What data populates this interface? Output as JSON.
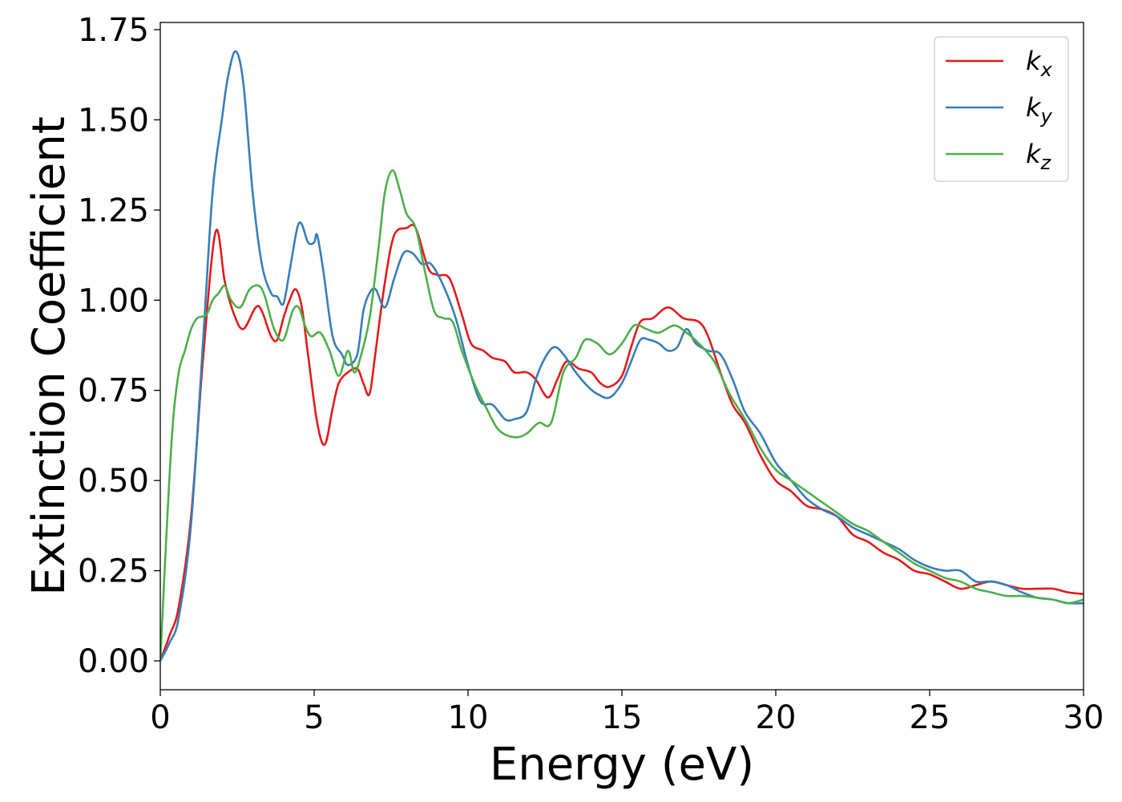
{
  "chart_data": {
    "type": "line",
    "title": "",
    "xlabel": "Energy (eV)",
    "ylabel": "Extinction Coefficient",
    "xlim": [
      0,
      30
    ],
    "ylim": [
      -0.08,
      1.77
    ],
    "xticks": [
      0,
      5,
      10,
      15,
      20,
      25,
      30
    ],
    "xtick_labels": [
      "0",
      "5",
      "10",
      "15",
      "20",
      "25",
      "30"
    ],
    "yticks": [
      0,
      0.25,
      0.5,
      0.75,
      1.0,
      1.25,
      1.5,
      1.75
    ],
    "ytick_labels": [
      "0.00",
      "0.25",
      "0.50",
      "0.75",
      "1.00",
      "1.25",
      "1.50",
      "1.75"
    ],
    "grid": false,
    "legend": "top-right",
    "series": [
      {
        "name": "k_x",
        "label_main": "k",
        "label_sub": "x",
        "color": "#e41a1c",
        "points": [
          [
            0,
            0.0
          ],
          [
            0.3,
            0.07
          ],
          [
            0.6,
            0.15
          ],
          [
            1.0,
            0.4
          ],
          [
            1.4,
            0.85
          ],
          [
            1.8,
            1.19
          ],
          [
            2.1,
            1.05
          ],
          [
            2.4,
            0.96
          ],
          [
            2.7,
            0.92
          ],
          [
            3.1,
            0.98
          ],
          [
            3.3,
            0.97
          ],
          [
            3.6,
            0.9
          ],
          [
            3.8,
            0.89
          ],
          [
            4.0,
            0.95
          ],
          [
            4.2,
            1.0
          ],
          [
            4.4,
            1.03
          ],
          [
            4.6,
            0.98
          ],
          [
            4.8,
            0.85
          ],
          [
            5.1,
            0.66
          ],
          [
            5.35,
            0.6
          ],
          [
            5.6,
            0.7
          ],
          [
            5.8,
            0.77
          ],
          [
            6.1,
            0.8
          ],
          [
            6.4,
            0.81
          ],
          [
            6.6,
            0.77
          ],
          [
            6.8,
            0.74
          ],
          [
            7.0,
            0.86
          ],
          [
            7.3,
            1.05
          ],
          [
            7.6,
            1.18
          ],
          [
            8.0,
            1.2
          ],
          [
            8.3,
            1.2
          ],
          [
            8.7,
            1.09
          ],
          [
            9.0,
            1.07
          ],
          [
            9.4,
            1.06
          ],
          [
            9.8,
            0.96
          ],
          [
            10.1,
            0.88
          ],
          [
            10.5,
            0.86
          ],
          [
            10.8,
            0.84
          ],
          [
            11.2,
            0.83
          ],
          [
            11.5,
            0.8
          ],
          [
            11.9,
            0.8
          ],
          [
            12.2,
            0.78
          ],
          [
            12.6,
            0.73
          ],
          [
            12.9,
            0.78
          ],
          [
            13.2,
            0.83
          ],
          [
            13.6,
            0.81
          ],
          [
            14.0,
            0.8
          ],
          [
            14.3,
            0.77
          ],
          [
            14.6,
            0.76
          ],
          [
            15.0,
            0.79
          ],
          [
            15.3,
            0.87
          ],
          [
            15.6,
            0.94
          ],
          [
            16.0,
            0.95
          ],
          [
            16.5,
            0.98
          ],
          [
            17.0,
            0.95
          ],
          [
            17.5,
            0.94
          ],
          [
            17.8,
            0.9
          ],
          [
            18.2,
            0.8
          ],
          [
            18.6,
            0.71
          ],
          [
            19.0,
            0.66
          ],
          [
            19.5,
            0.57
          ],
          [
            20.0,
            0.5
          ],
          [
            20.5,
            0.47
          ],
          [
            21.0,
            0.43
          ],
          [
            21.5,
            0.42
          ],
          [
            22.0,
            0.4
          ],
          [
            22.5,
            0.35
          ],
          [
            23.0,
            0.33
          ],
          [
            23.5,
            0.3
          ],
          [
            24.0,
            0.28
          ],
          [
            24.5,
            0.25
          ],
          [
            25.0,
            0.24
          ],
          [
            25.5,
            0.22
          ],
          [
            26.0,
            0.2
          ],
          [
            26.5,
            0.21
          ],
          [
            27.0,
            0.22
          ],
          [
            27.5,
            0.21
          ],
          [
            28.0,
            0.2
          ],
          [
            28.5,
            0.2
          ],
          [
            29.0,
            0.2
          ],
          [
            29.5,
            0.19
          ],
          [
            30.0,
            0.185
          ]
        ]
      },
      {
        "name": "k_y",
        "label_main": "k",
        "label_sub": "y",
        "color": "#377eb8",
        "points": [
          [
            0,
            0.0
          ],
          [
            0.3,
            0.05
          ],
          [
            0.6,
            0.12
          ],
          [
            1.0,
            0.38
          ],
          [
            1.4,
            0.9
          ],
          [
            1.7,
            1.3
          ],
          [
            2.0,
            1.5
          ],
          [
            2.2,
            1.62
          ],
          [
            2.45,
            1.69
          ],
          [
            2.7,
            1.6
          ],
          [
            3.0,
            1.3
          ],
          [
            3.3,
            1.1
          ],
          [
            3.6,
            1.02
          ],
          [
            3.8,
            1.01
          ],
          [
            4.0,
            0.99
          ],
          [
            4.2,
            1.08
          ],
          [
            4.45,
            1.2
          ],
          [
            4.6,
            1.21
          ],
          [
            4.8,
            1.16
          ],
          [
            5.0,
            1.16
          ],
          [
            5.1,
            1.18
          ],
          [
            5.3,
            1.08
          ],
          [
            5.6,
            0.9
          ],
          [
            5.9,
            0.85
          ],
          [
            6.1,
            0.82
          ],
          [
            6.4,
            0.85
          ],
          [
            6.6,
            0.97
          ],
          [
            6.8,
            1.02
          ],
          [
            7.0,
            1.03
          ],
          [
            7.3,
            0.98
          ],
          [
            7.6,
            1.06
          ],
          [
            7.9,
            1.13
          ],
          [
            8.2,
            1.13
          ],
          [
            8.5,
            1.1
          ],
          [
            8.8,
            1.1
          ],
          [
            9.2,
            1.04
          ],
          [
            9.6,
            0.95
          ],
          [
            10.0,
            0.82
          ],
          [
            10.4,
            0.72
          ],
          [
            10.8,
            0.71
          ],
          [
            11.2,
            0.67
          ],
          [
            11.5,
            0.67
          ],
          [
            11.9,
            0.69
          ],
          [
            12.2,
            0.78
          ],
          [
            12.5,
            0.84
          ],
          [
            12.8,
            0.87
          ],
          [
            13.1,
            0.85
          ],
          [
            13.5,
            0.8
          ],
          [
            13.9,
            0.76
          ],
          [
            14.2,
            0.74
          ],
          [
            14.6,
            0.73
          ],
          [
            15.0,
            0.77
          ],
          [
            15.3,
            0.83
          ],
          [
            15.6,
            0.89
          ],
          [
            15.9,
            0.89
          ],
          [
            16.2,
            0.88
          ],
          [
            16.5,
            0.86
          ],
          [
            16.8,
            0.87
          ],
          [
            17.1,
            0.92
          ],
          [
            17.4,
            0.88
          ],
          [
            17.8,
            0.86
          ],
          [
            18.2,
            0.85
          ],
          [
            18.6,
            0.78
          ],
          [
            19.0,
            0.69
          ],
          [
            19.5,
            0.63
          ],
          [
            20.0,
            0.55
          ],
          [
            20.5,
            0.5
          ],
          [
            21.0,
            0.45
          ],
          [
            21.5,
            0.42
          ],
          [
            22.0,
            0.4
          ],
          [
            22.5,
            0.37
          ],
          [
            23.0,
            0.35
          ],
          [
            23.5,
            0.33
          ],
          [
            24.0,
            0.31
          ],
          [
            24.5,
            0.28
          ],
          [
            25.0,
            0.26
          ],
          [
            25.5,
            0.25
          ],
          [
            26.0,
            0.25
          ],
          [
            26.5,
            0.22
          ],
          [
            27.0,
            0.22
          ],
          [
            27.5,
            0.21
          ],
          [
            28.0,
            0.19
          ],
          [
            28.5,
            0.175
          ],
          [
            29.0,
            0.17
          ],
          [
            29.5,
            0.16
          ],
          [
            30.0,
            0.16
          ]
        ]
      },
      {
        "name": "k_z",
        "label_main": "k",
        "label_sub": "z",
        "color": "#4daf4a",
        "points": [
          [
            0,
            0.0
          ],
          [
            0.2,
            0.35
          ],
          [
            0.4,
            0.65
          ],
          [
            0.6,
            0.8
          ],
          [
            0.8,
            0.86
          ],
          [
            1.0,
            0.92
          ],
          [
            1.2,
            0.95
          ],
          [
            1.5,
            0.96
          ],
          [
            1.7,
            1.0
          ],
          [
            1.9,
            1.02
          ],
          [
            2.1,
            1.04
          ],
          [
            2.3,
            1.0
          ],
          [
            2.6,
            0.98
          ],
          [
            2.9,
            1.03
          ],
          [
            3.2,
            1.04
          ],
          [
            3.4,
            1.01
          ],
          [
            3.7,
            0.92
          ],
          [
            4.0,
            0.89
          ],
          [
            4.3,
            0.97
          ],
          [
            4.5,
            0.98
          ],
          [
            4.7,
            0.93
          ],
          [
            4.9,
            0.9
          ],
          [
            5.2,
            0.91
          ],
          [
            5.5,
            0.86
          ],
          [
            5.8,
            0.79
          ],
          [
            6.1,
            0.86
          ],
          [
            6.3,
            0.8
          ],
          [
            6.5,
            0.84
          ],
          [
            6.8,
            0.95
          ],
          [
            7.1,
            1.15
          ],
          [
            7.3,
            1.3
          ],
          [
            7.55,
            1.36
          ],
          [
            7.8,
            1.3
          ],
          [
            8.0,
            1.24
          ],
          [
            8.3,
            1.2
          ],
          [
            8.6,
            1.08
          ],
          [
            8.9,
            0.97
          ],
          [
            9.2,
            0.95
          ],
          [
            9.5,
            0.94
          ],
          [
            9.8,
            0.86
          ],
          [
            10.2,
            0.77
          ],
          [
            10.6,
            0.7
          ],
          [
            11.0,
            0.64
          ],
          [
            11.5,
            0.62
          ],
          [
            11.9,
            0.63
          ],
          [
            12.3,
            0.66
          ],
          [
            12.7,
            0.66
          ],
          [
            13.1,
            0.8
          ],
          [
            13.5,
            0.84
          ],
          [
            13.8,
            0.89
          ],
          [
            14.2,
            0.88
          ],
          [
            14.6,
            0.85
          ],
          [
            15.0,
            0.88
          ],
          [
            15.4,
            0.93
          ],
          [
            15.8,
            0.92
          ],
          [
            16.2,
            0.91
          ],
          [
            16.7,
            0.93
          ],
          [
            17.1,
            0.91
          ],
          [
            17.5,
            0.88
          ],
          [
            18.0,
            0.83
          ],
          [
            18.5,
            0.74
          ],
          [
            19.0,
            0.67
          ],
          [
            19.5,
            0.59
          ],
          [
            20.0,
            0.53
          ],
          [
            20.5,
            0.5
          ],
          [
            21.0,
            0.47
          ],
          [
            21.5,
            0.44
          ],
          [
            22.0,
            0.41
          ],
          [
            22.5,
            0.38
          ],
          [
            23.0,
            0.36
          ],
          [
            23.5,
            0.33
          ],
          [
            24.0,
            0.3
          ],
          [
            24.5,
            0.27
          ],
          [
            25.0,
            0.25
          ],
          [
            25.5,
            0.23
          ],
          [
            26.0,
            0.22
          ],
          [
            26.5,
            0.2
          ],
          [
            27.0,
            0.19
          ],
          [
            27.5,
            0.18
          ],
          [
            28.0,
            0.18
          ],
          [
            28.5,
            0.175
          ],
          [
            29.0,
            0.17
          ],
          [
            29.5,
            0.16
          ],
          [
            30.0,
            0.17
          ]
        ]
      }
    ]
  }
}
